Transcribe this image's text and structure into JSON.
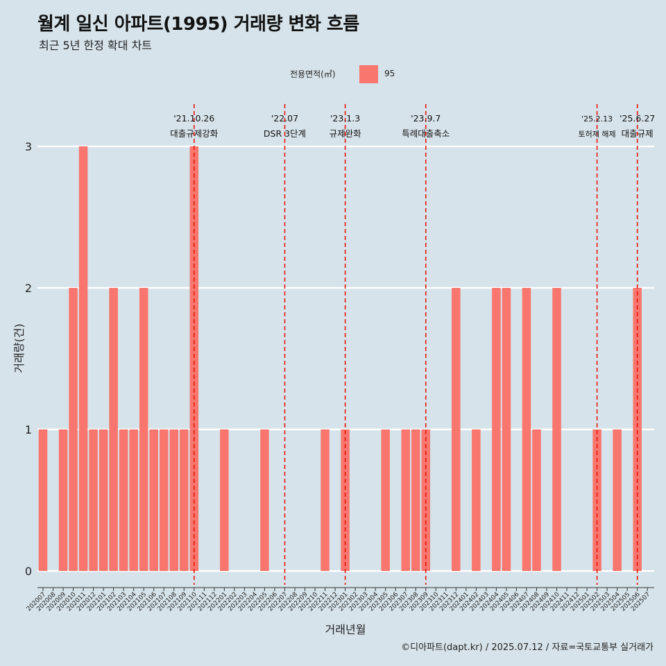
{
  "title": "월계 일신 아파트(1995) 거래량 변화 흐름",
  "subtitle": "최근 5년 한정 확대 차트",
  "legend": {
    "title": "전용면적(㎡)",
    "items": [
      {
        "label": "95",
        "color": "#f8766d"
      }
    ]
  },
  "caption": "©디아파트(dapt.kr) / 2025.07.12 / 자료=국토교통부 실거래가",
  "chart_data": {
    "type": "bar",
    "title": "월계 일신 아파트(1995) 거래량 변화 흐름",
    "subtitle": "최근 5년 한정 확대 차트",
    "xlabel": "거래년월",
    "ylabel": "거래량(건)",
    "ylim": [
      0,
      3
    ],
    "yticks": [
      0,
      1,
      2,
      3
    ],
    "grid": "horizontal major lines only",
    "legend_position": "top",
    "bar_color": "#f8766d",
    "categories": [
      "202007",
      "202008",
      "202009",
      "202010",
      "202011",
      "202012",
      "202101",
      "202102",
      "202103",
      "202104",
      "202105",
      "202106",
      "202107",
      "202108",
      "202109",
      "202110",
      "202111",
      "202112",
      "202201",
      "202202",
      "202203",
      "202204",
      "202205",
      "202206",
      "202207",
      "202208",
      "202209",
      "202210",
      "202211",
      "202212",
      "202301",
      "202302",
      "202303",
      "202304",
      "202305",
      "202306",
      "202307",
      "202308",
      "202309",
      "202310",
      "202311",
      "202312",
      "202401",
      "202402",
      "202403",
      "202404",
      "202405",
      "202406",
      "202407",
      "202408",
      "202409",
      "202410",
      "202411",
      "202412",
      "202501",
      "202502",
      "202503",
      "202504",
      "202505",
      "202506",
      "202507"
    ],
    "series": [
      {
        "name": "95",
        "values": [
          1,
          0,
          1,
          2,
          3,
          1,
          1,
          2,
          1,
          1,
          2,
          1,
          1,
          1,
          1,
          3,
          0,
          0,
          1,
          0,
          0,
          0,
          1,
          0,
          0,
          0,
          0,
          0,
          1,
          0,
          1,
          0,
          0,
          0,
          1,
          0,
          1,
          1,
          1,
          0,
          0,
          2,
          0,
          1,
          0,
          2,
          2,
          0,
          2,
          1,
          0,
          2,
          0,
          0,
          0,
          1,
          0,
          1,
          0,
          2,
          0
        ]
      }
    ],
    "annotations": [
      {
        "category": "202110",
        "date": "'21.10.26",
        "label": "대출규제강화"
      },
      {
        "category": "202207",
        "date": "'22.07",
        "label": "DSR 3단계"
      },
      {
        "category": "202301",
        "date": "'23.1.3",
        "label": "규제완화"
      },
      {
        "category": "202309",
        "date": "'23.9.7",
        "label": "특례대출축소"
      },
      {
        "category": "202502",
        "date": "'25.2.13",
        "label": "토허제 해제"
      },
      {
        "category": "202506",
        "date": "'25.6.27",
        "label": "대출규제"
      }
    ]
  }
}
